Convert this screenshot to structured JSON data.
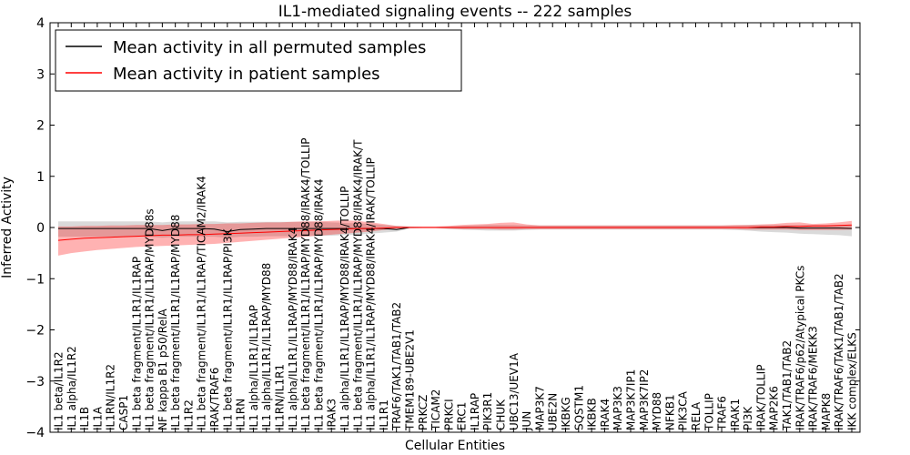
{
  "chart_data": {
    "type": "line",
    "title": "IL1-mediated signaling events -- 222 samples",
    "xlabel": "Cellular Entities",
    "ylabel": "Inferred Activity",
    "ylim": [
      -4,
      4
    ],
    "yticks": [
      -4,
      -3,
      -2,
      -1,
      0,
      1,
      2,
      3,
      4
    ],
    "grid": false,
    "legend_position": "top-left",
    "categories": [
      "IL1 beta/IL1R2",
      "IL1 alpha/IL1R2",
      "IL1B",
      "IL1A",
      "IL1RN/IL1R2",
      "CASP1",
      "IL1 beta fragment/IL1R1/IL1RAP",
      "IL1 beta fragment/IL1R1/IL1RAP/MYD88s",
      "NF kappa B1 p50/RelA",
      "IL1 beta fragment/IL1R1/IL1RAP/MYD88",
      "IL1R2",
      "IL1 beta fragment/IL1R1/IL1RAP/TICAM2/IRAK4",
      "IRAK/TRAF6",
      "IL1 beta fragment/IL1R1/IL1RAP/PI3K",
      "IL1RN",
      "IL1 alpha/IL1R1/IL1RAP",
      "IL1 alpha/IL1R1/IL1RAP/MYD88",
      "IL1RN/IL1R1",
      "IL1 alpha/IL1R1/IL1RAP/MYD88/IRAK4",
      "IL1 beta fragment/IL1R1/IL1RAP/MYD88/IRAK4/TOLLIP",
      "IL1 beta fragment/IL1R1/IL1RAP/MYD88/IRAK4",
      "IRAK3",
      "IL1 alpha/IL1R1/IL1RAP/MYD88/IRAK4/TOLLIP",
      "IL1 beta fragment/IL1R1/IL1RAP/MYD88/IRAK4/IRAK/T",
      "IL1 alpha/IL1R1/IL1RAP/MYD88/IRAK4/IRAK/TOLLIP",
      "IL1R1",
      "TRAF6/TAK1/TAB1/TAB2",
      "TMEM189-UBE2V1",
      "PRKCZ",
      "TICAM2",
      "PRKCI",
      "ERC1",
      "IL1RAP",
      "PIK3R1",
      "CHUK",
      "UBC13/UEV1A",
      "JUN",
      "MAP3K7",
      "UBE2N",
      "IKBKG",
      "SQSTM1",
      "IKBKB",
      "IRAK4",
      "MAP3K3",
      "MAP3K7IP1",
      "MAP3K7IP2",
      "MYD88",
      "NFKB1",
      "PIK3CA",
      "RELA",
      "TOLLIP",
      "TRAF6",
      "IRAK1",
      "PI3K",
      "IRAK/TOLLIP",
      "MAP2K6",
      "TAK1/TAB1/TAB2",
      "IRAK/TRAF6/p62/Atypical PKCs",
      "IRAK/TRAF6/MEKK3",
      "MAPK8",
      "IRAK/TRAF6/TAK1/TAB1/TAB2",
      "IKK complex/ELKS"
    ],
    "series": [
      {
        "name": "Mean activity in all permuted samples",
        "color": "#000000",
        "values": [
          -0.02,
          -0.02,
          -0.02,
          -0.02,
          -0.02,
          -0.02,
          -0.02,
          -0.02,
          -0.06,
          -0.02,
          -0.02,
          -0.02,
          -0.03,
          -0.08,
          -0.04,
          -0.03,
          -0.02,
          -0.02,
          -0.02,
          -0.02,
          -0.02,
          -0.02,
          -0.02,
          -0.02,
          -0.02,
          -0.02,
          -0.04,
          0.0,
          0.0,
          0.0,
          0.0,
          0.0,
          0.0,
          0.0,
          0.0,
          0.0,
          0.0,
          0.0,
          0.0,
          0.0,
          0.0,
          0.0,
          0.0,
          0.0,
          0.0,
          0.0,
          0.0,
          0.0,
          0.0,
          0.0,
          0.0,
          0.0,
          0.0,
          0.0,
          0.0,
          0.0,
          0.0,
          -0.01,
          -0.01,
          -0.01,
          -0.01,
          -0.02
        ],
        "band_low": [
          -0.18,
          -0.18,
          -0.18,
          -0.18,
          -0.18,
          -0.18,
          -0.18,
          -0.18,
          -0.2,
          -0.18,
          -0.18,
          -0.18,
          -0.18,
          -0.2,
          -0.18,
          -0.18,
          -0.17,
          -0.17,
          -0.17,
          -0.17,
          -0.16,
          -0.16,
          -0.15,
          -0.14,
          -0.12,
          -0.1,
          -0.08,
          -0.02,
          -0.01,
          -0.01,
          -0.03,
          -0.04,
          -0.05,
          -0.06,
          -0.06,
          -0.06,
          -0.05,
          -0.04,
          -0.04,
          -0.04,
          -0.04,
          -0.04,
          -0.04,
          -0.04,
          -0.04,
          -0.04,
          -0.04,
          -0.04,
          -0.04,
          -0.04,
          -0.04,
          -0.04,
          -0.05,
          -0.06,
          -0.08,
          -0.09,
          -0.1,
          -0.12,
          -0.13,
          -0.14,
          -0.15,
          -0.17
        ],
        "band_high": [
          0.12,
          0.12,
          0.12,
          0.12,
          0.12,
          0.12,
          0.12,
          0.12,
          0.1,
          0.12,
          0.12,
          0.12,
          0.12,
          0.1,
          0.11,
          0.11,
          0.11,
          0.11,
          0.11,
          0.11,
          0.11,
          0.1,
          0.09,
          0.08,
          0.07,
          0.05,
          0.03,
          0.02,
          0.01,
          0.01,
          0.02,
          0.03,
          0.04,
          0.05,
          0.05,
          0.05,
          0.04,
          0.04,
          0.04,
          0.04,
          0.04,
          0.04,
          0.04,
          0.04,
          0.04,
          0.04,
          0.04,
          0.04,
          0.04,
          0.04,
          0.04,
          0.04,
          0.04,
          0.05,
          0.05,
          0.05,
          0.05,
          0.05,
          0.05,
          0.05,
          0.05,
          0.05
        ]
      },
      {
        "name": "Mean activity in patient samples",
        "color": "#ff0000",
        "values": [
          -0.25,
          -0.23,
          -0.21,
          -0.2,
          -0.19,
          -0.18,
          -0.17,
          -0.16,
          -0.15,
          -0.15,
          -0.14,
          -0.14,
          -0.13,
          -0.12,
          -0.11,
          -0.1,
          -0.09,
          -0.08,
          -0.07,
          -0.06,
          -0.05,
          -0.04,
          -0.03,
          -0.02,
          -0.02,
          -0.01,
          0.0,
          0.0,
          0.0,
          0.0,
          0.0,
          0.0,
          0.0,
          0.0,
          0.0,
          0.0,
          0.0,
          0.0,
          0.0,
          0.0,
          0.0,
          0.0,
          0.0,
          0.0,
          0.0,
          0.0,
          0.0,
          0.0,
          0.0,
          0.0,
          0.0,
          0.0,
          0.0,
          0.0,
          0.01,
          0.01,
          0.02,
          0.02,
          0.03,
          0.03,
          0.04,
          0.05
        ],
        "band_low": [
          -0.55,
          -0.5,
          -0.47,
          -0.44,
          -0.42,
          -0.4,
          -0.38,
          -0.37,
          -0.36,
          -0.35,
          -0.34,
          -0.33,
          -0.32,
          -0.3,
          -0.28,
          -0.26,
          -0.24,
          -0.22,
          -0.2,
          -0.18,
          -0.16,
          -0.14,
          -0.12,
          -0.1,
          -0.08,
          -0.05,
          -0.02,
          -0.01,
          -0.01,
          -0.01,
          -0.02,
          -0.03,
          -0.03,
          -0.03,
          -0.04,
          -0.04,
          -0.03,
          -0.03,
          -0.03,
          -0.03,
          -0.03,
          -0.03,
          -0.03,
          -0.03,
          -0.03,
          -0.03,
          -0.03,
          -0.03,
          -0.03,
          -0.03,
          -0.03,
          -0.03,
          -0.03,
          -0.04,
          -0.04,
          -0.04,
          -0.04,
          -0.05,
          -0.05,
          -0.05,
          -0.05,
          -0.04
        ],
        "band_high": [
          0.02,
          0.02,
          0.03,
          0.03,
          0.04,
          0.04,
          0.05,
          0.05,
          0.05,
          0.06,
          0.06,
          0.07,
          0.07,
          0.08,
          0.08,
          0.09,
          0.1,
          0.1,
          0.11,
          0.12,
          0.12,
          0.13,
          0.14,
          0.13,
          0.1,
          0.07,
          0.03,
          0.02,
          0.02,
          0.02,
          0.03,
          0.05,
          0.06,
          0.07,
          0.09,
          0.1,
          0.06,
          0.04,
          0.04,
          0.04,
          0.04,
          0.04,
          0.04,
          0.04,
          0.04,
          0.04,
          0.04,
          0.04,
          0.04,
          0.04,
          0.04,
          0.04,
          0.05,
          0.05,
          0.06,
          0.07,
          0.09,
          0.1,
          0.07,
          0.08,
          0.1,
          0.13
        ]
      }
    ]
  }
}
